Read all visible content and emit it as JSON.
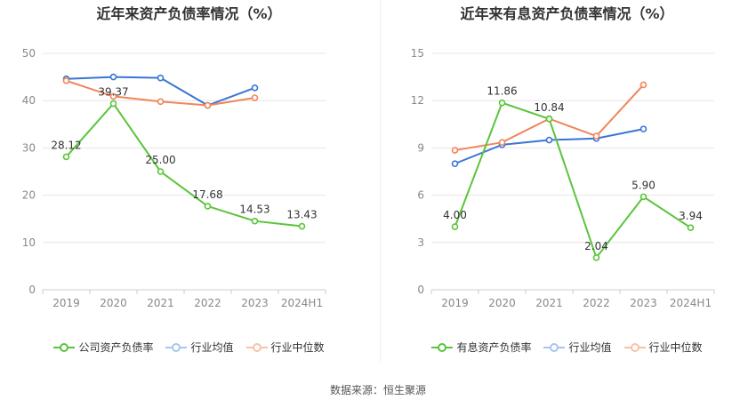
{
  "source": "数据来源：恒生聚源",
  "charts": [
    {
      "title": "近年来资产负债率情况（%）",
      "legend": [
        "公司资产负债率",
        "行业均值",
        "行业中位数"
      ]
    },
    {
      "title": "近年来有息资产负债率情况（%）",
      "legend": [
        "有息资产负债率",
        "行业均值",
        "行业中位数"
      ]
    }
  ],
  "colors": {
    "company": "#5ac53a",
    "avg": "#3a75d4",
    "median": "#f0855a",
    "grid": "#e6e6e6",
    "axis_text": "#888888"
  },
  "chart_data": [
    {
      "type": "line",
      "title": "近年来资产负债率情况（%）",
      "categories": [
        "2019",
        "2020",
        "2021",
        "2022",
        "2023",
        "2024H1"
      ],
      "ylim": [
        0,
        50
      ],
      "yticks": [
        0,
        10,
        20,
        30,
        40,
        50
      ],
      "series": [
        {
          "name": "公司资产负债率",
          "values": [
            28.12,
            39.37,
            25.0,
            17.68,
            14.53,
            13.43
          ],
          "labels": [
            "28.12",
            "39.37",
            "25.00",
            "17.68",
            "14.53",
            "13.43"
          ]
        },
        {
          "name": "行业均值",
          "values": [
            44.6,
            45.0,
            44.8,
            39.0,
            42.7,
            null
          ]
        },
        {
          "name": "行业中位数",
          "values": [
            44.2,
            40.9,
            39.8,
            39.0,
            40.6,
            null
          ]
        }
      ]
    },
    {
      "type": "line",
      "title": "近年来有息资产负债率情况（%）",
      "categories": [
        "2019",
        "2020",
        "2021",
        "2022",
        "2023",
        "2024H1"
      ],
      "ylim": [
        0,
        15
      ],
      "yticks": [
        0,
        3,
        6,
        9,
        12,
        15
      ],
      "series": [
        {
          "name": "有息资产负债率",
          "values": [
            4.0,
            11.86,
            10.84,
            2.04,
            5.9,
            3.94
          ],
          "labels": [
            "4.00",
            "11.86",
            "10.84",
            "2.04",
            "5.90",
            "3.94"
          ]
        },
        {
          "name": "行业均值",
          "values": [
            8.0,
            9.2,
            9.5,
            9.6,
            10.2,
            null
          ]
        },
        {
          "name": "行业中位数",
          "values": [
            8.85,
            9.35,
            10.85,
            9.75,
            13.0,
            null
          ]
        }
      ]
    }
  ]
}
